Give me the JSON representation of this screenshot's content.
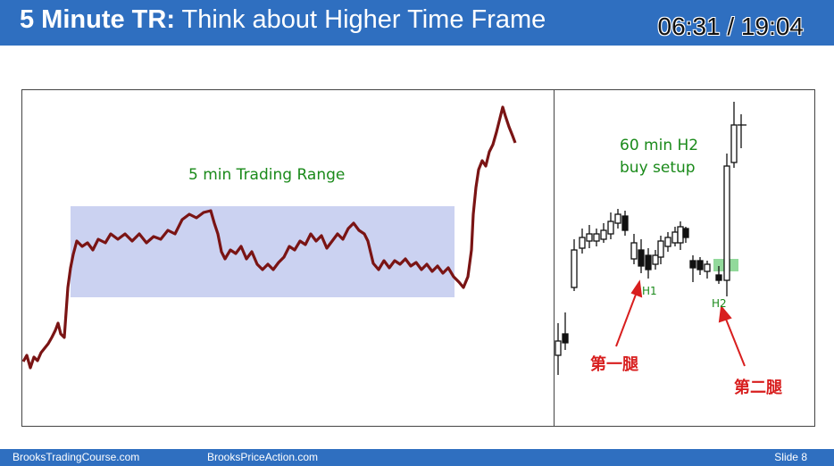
{
  "header": {
    "title_bold": "5 Minute TR:",
    "title_rest": " Think about Higher Time Frame",
    "timer": "06:31 / 19:04"
  },
  "left_chart": {
    "range_label": "5 min Trading Range"
  },
  "right_chart": {
    "setup_label_line1": "60 min H2",
    "setup_label_line2": "buy setup",
    "h1_label": "H1",
    "h2_label": "H2",
    "first_leg_label": "第一腿",
    "second_leg_label": "第二腿"
  },
  "colors": {
    "header_bg": "#2f6fc0",
    "price_line": "#7a1414",
    "range_fill": "#c5cdf0",
    "setup_green": "#1a8a1a",
    "annotation_red": "#d81e1e",
    "highlight_green": "#7fd28a"
  },
  "footer": {
    "site1": "BrooksTradingCourse.com",
    "site2": "BrooksPriceAction.com",
    "slide": "Slide  8"
  }
}
